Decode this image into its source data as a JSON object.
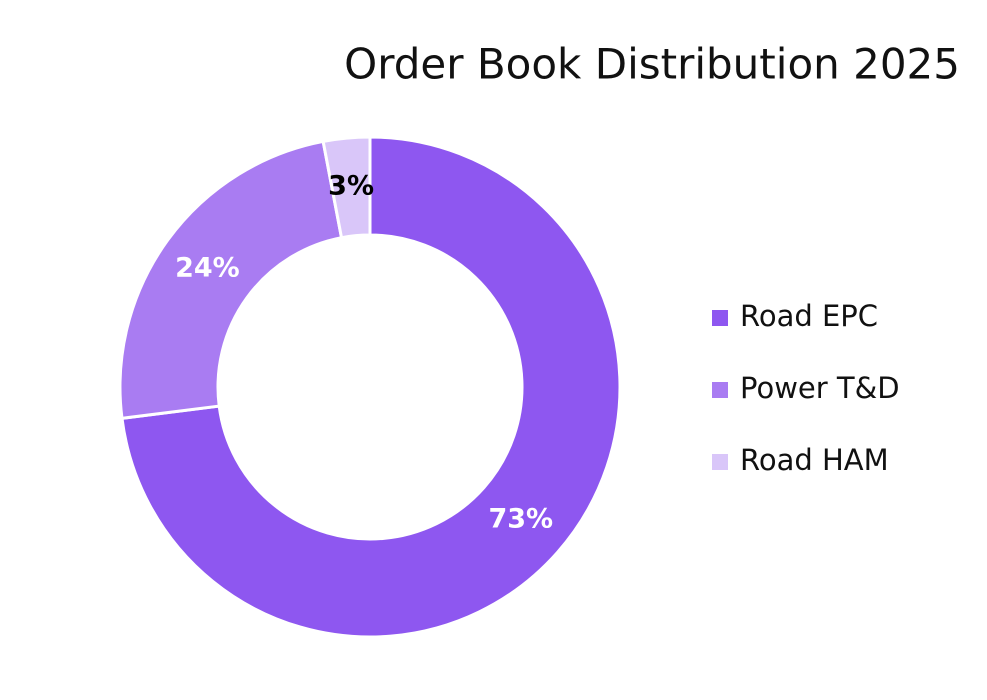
{
  "chart_data": {
    "type": "donut",
    "title": "Order Book Distribution 2025",
    "categories": [
      "Road EPC",
      "Power T&D",
      "Road HAM"
    ],
    "values": [
      73,
      24,
      3
    ],
    "value_labels": [
      "73%",
      "24%",
      "3%"
    ],
    "colors": [
      "#8e57f0",
      "#a97cf2",
      "#d9c6f9"
    ],
    "label_colors": [
      "#ffffff",
      "#ffffff",
      "#000000"
    ],
    "legend": "right"
  }
}
